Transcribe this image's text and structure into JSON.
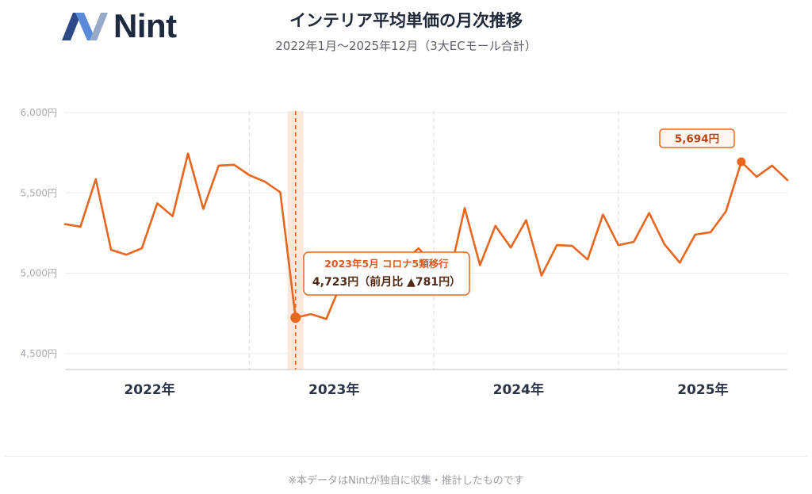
{
  "logo": {
    "text": "Nint",
    "icon": "nint-logo-mark"
  },
  "chart_data": {
    "type": "line",
    "title": "インテリア平均単価の月次推移",
    "subtitle": "2022年1月～2025年12月（3大ECモール合計）",
    "xlabel": "",
    "ylabel": "",
    "x_ticks": [
      "2022年",
      "2023年",
      "2024年",
      "2025年"
    ],
    "yticks": [
      4500,
      5000,
      5500,
      6000
    ],
    "ytick_labels": [
      "4,500円",
      "5,000円",
      "5,500円",
      "6,000円"
    ],
    "ylim": [
      4400,
      6000
    ],
    "grid": true,
    "series": [
      {
        "values": [
          5305,
          5290,
          5585,
          5145,
          5115,
          5155,
          5435,
          5355,
          5745,
          5400,
          5670,
          5675,
          5610,
          5570,
          5504,
          4723,
          4745,
          4715,
          4945,
          null,
          null,
          null,
          5070,
          5155,
          5050,
          4980,
          5405,
          5050,
          5295,
          5160,
          5330,
          4985,
          5175,
          5170,
          5085,
          5365,
          5175,
          5195,
          5375,
          5180,
          5065,
          5240,
          5255,
          5385,
          5694,
          5600,
          5670,
          5580
        ]
      }
    ],
    "annotations": [
      {
        "point": 15,
        "title": "2023年5月 コロナ5類移行",
        "text": "4,723円（前月比 ▲781円）",
        "highlight": true
      },
      {
        "point": 44,
        "text": "5,694円"
      }
    ]
  },
  "colors": {
    "line": "#e8661e",
    "highlight_band": "#fde6da",
    "marker_line": "#e8661e",
    "grid": "#ebebeb",
    "divider": "#d9d9d9",
    "axis": "#cfcfcf",
    "ytick_text": "#a8abb2",
    "year_text": "#2b3446"
  },
  "footer": {
    "note": "※本データはNintが独自に収集・推計したものです"
  }
}
